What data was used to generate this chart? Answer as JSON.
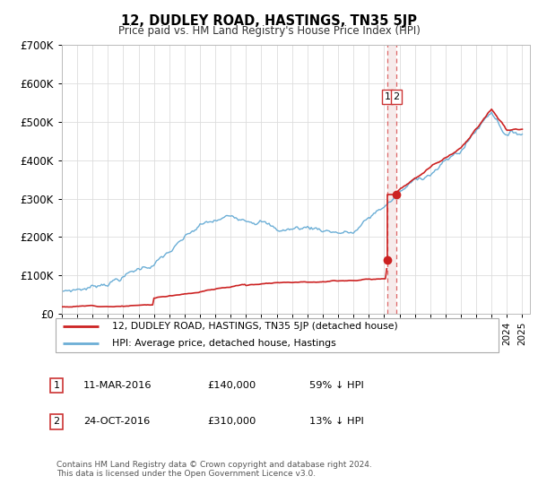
{
  "title": "12, DUDLEY ROAD, HASTINGS, TN35 5JP",
  "subtitle": "Price paid vs. HM Land Registry's House Price Index (HPI)",
  "ylim": [
    0,
    700000
  ],
  "yticks": [
    0,
    100000,
    200000,
    300000,
    400000,
    500000,
    600000,
    700000
  ],
  "ytick_labels": [
    "£0",
    "£100K",
    "£200K",
    "£300K",
    "£400K",
    "£500K",
    "£600K",
    "£700K"
  ],
  "hpi_color": "#6baed6",
  "property_color": "#cc2222",
  "dashed_line_color": "#dd6666",
  "shade_color": "#e8d0d0",
  "marker_color": "#cc2222",
  "t1_year": 2016.19,
  "t1_price": 140000,
  "t2_year": 2016.81,
  "t2_price": 310000,
  "legend_property": "12, DUDLEY ROAD, HASTINGS, TN35 5JP (detached house)",
  "legend_hpi": "HPI: Average price, detached house, Hastings",
  "ann1_date": "11-MAR-2016",
  "ann1_price": "£140,000",
  "ann1_pct": "59% ↓ HPI",
  "ann2_date": "24-OCT-2016",
  "ann2_price": "£310,000",
  "ann2_pct": "13% ↓ HPI",
  "footnote": "Contains HM Land Registry data © Crown copyright and database right 2024.\nThis data is licensed under the Open Government Licence v3.0.",
  "background_color": "#ffffff",
  "grid_color": "#dddddd"
}
